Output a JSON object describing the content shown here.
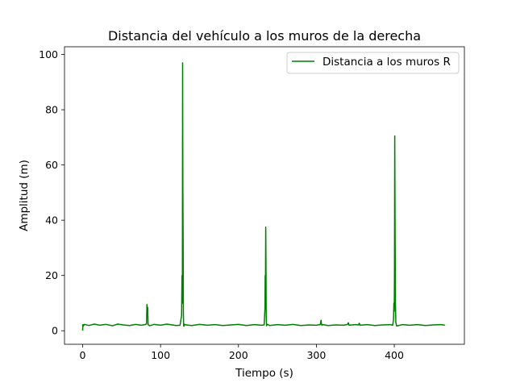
{
  "chart_data": {
    "type": "line",
    "title": "Distancia del vehículo a los muros de la derecha",
    "xlabel": "Tiempo (s)",
    "ylabel": "Amplitud (m)",
    "xlim": [
      -23.3,
      490
    ],
    "ylim": [
      -4.9,
      102.8
    ],
    "xticks": [
      0,
      100,
      200,
      300,
      400
    ],
    "yticks": [
      0,
      20,
      40,
      60,
      80,
      100
    ],
    "xtick_labels": [
      "0",
      "100",
      "200",
      "300",
      "400"
    ],
    "ytick_labels": [
      "0",
      "20",
      "40",
      "60",
      "80",
      "100"
    ],
    "grid": false,
    "legend_position": "top-right",
    "series": [
      {
        "name": "Distancia a los muros R",
        "color": "#008000",
        "x": [
          0,
          0.3,
          0.6,
          2,
          8,
          15,
          22,
          30,
          38,
          45,
          52,
          60,
          68,
          75,
          80,
          82,
          82.5,
          83,
          83.5,
          84,
          86,
          92,
          100,
          108,
          115,
          120,
          125,
          127,
          127.5,
          128,
          128.3,
          128.6,
          129,
          129.3,
          129.6,
          130,
          131,
          133,
          140,
          150,
          160,
          170,
          180,
          190,
          200,
          210,
          220,
          230,
          233,
          234,
          234.3,
          234.6,
          235,
          235.3,
          235.6,
          236,
          237,
          240,
          250,
          260,
          270,
          280,
          290,
          300,
          305,
          306,
          306.5,
          307,
          308,
          315,
          325,
          335,
          340,
          341,
          342,
          350,
          354,
          355,
          356,
          365,
          375,
          385,
          395,
          398,
          399,
          399.5,
          400,
          400.3,
          400.6,
          401,
          401.5,
          402,
          403,
          410,
          420,
          430,
          440,
          450,
          460,
          465
        ],
        "y": [
          0,
          2.2,
          1.6,
          2.3,
          1.9,
          2.4,
          2.0,
          2.3,
          1.8,
          2.4,
          2.1,
          1.9,
          2.3,
          2.0,
          2.2,
          2.5,
          9.5,
          5.0,
          8.5,
          2.2,
          1.8,
          2.3,
          2.0,
          2.4,
          2.1,
          1.9,
          2.0,
          5.5,
          20.0,
          10.0,
          97.0,
          55.0,
          30.0,
          6.0,
          2.0,
          1.6,
          2.3,
          2.1,
          1.9,
          2.3,
          2.0,
          2.2,
          1.9,
          2.1,
          2.3,
          1.9,
          2.2,
          2.0,
          2.1,
          8.0,
          20.0,
          12.0,
          37.5,
          25.0,
          6.0,
          1.8,
          2.3,
          1.9,
          2.2,
          2.0,
          2.3,
          1.9,
          2.1,
          2.0,
          2.2,
          3.8,
          2.5,
          2.0,
          2.2,
          1.9,
          2.1,
          2.0,
          2.3,
          2.9,
          2.0,
          2.2,
          2.1,
          2.7,
          2.0,
          2.2,
          1.9,
          2.1,
          2.2,
          2.0,
          4.0,
          10.0,
          7.0,
          23.0,
          70.5,
          40.0,
          10.0,
          3.0,
          1.7,
          2.2,
          2.0,
          2.2,
          1.9,
          2.1,
          2.2,
          2.0
        ]
      }
    ]
  }
}
